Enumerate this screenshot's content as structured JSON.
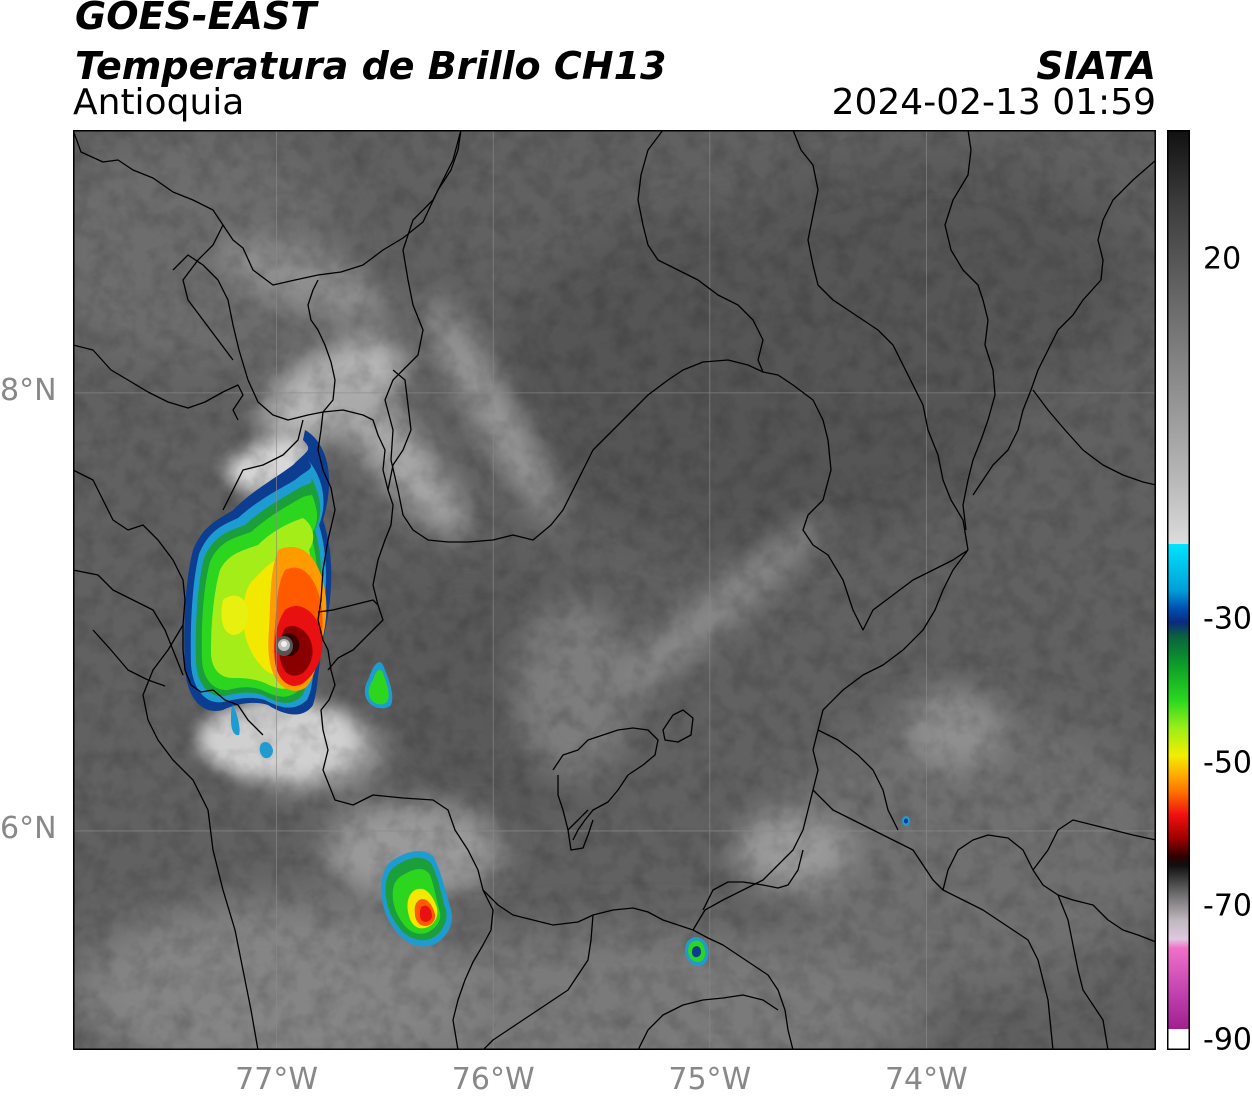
{
  "header": {
    "satellite": "GOES-EAST",
    "product": "Temperatura de Brillo CH13",
    "region": "Antioquia",
    "organization": "SIATA",
    "datetime": "2024-02-13 01:59"
  },
  "axes": {
    "lat_labels": [
      {
        "text": "8°N",
        "value": 8
      },
      {
        "text": "6°N",
        "value": 6
      }
    ],
    "lon_labels": [
      {
        "text": "77°W",
        "value": -77
      },
      {
        "text": "76°W",
        "value": -76
      },
      {
        "text": "75°W",
        "value": -75
      },
      {
        "text": "74°W",
        "value": -74
      }
    ],
    "lat_range": [
      5.0,
      9.2
    ],
    "lon_range": [
      -77.94,
      -72.94
    ]
  },
  "colorbar": {
    "range": [
      -90,
      38
    ],
    "ticks": [
      {
        "text": "20",
        "value": 20
      },
      {
        "text": "-30",
        "value": -30
      },
      {
        "text": "-50",
        "value": -50
      },
      {
        "text": "-70",
        "value": -70
      },
      {
        "text": "-90",
        "value": -90
      }
    ]
  },
  "colors": {
    "background_gray": "#5f5f5f",
    "border_lines": "#000000",
    "grid_lines": "#8a8a8a"
  }
}
